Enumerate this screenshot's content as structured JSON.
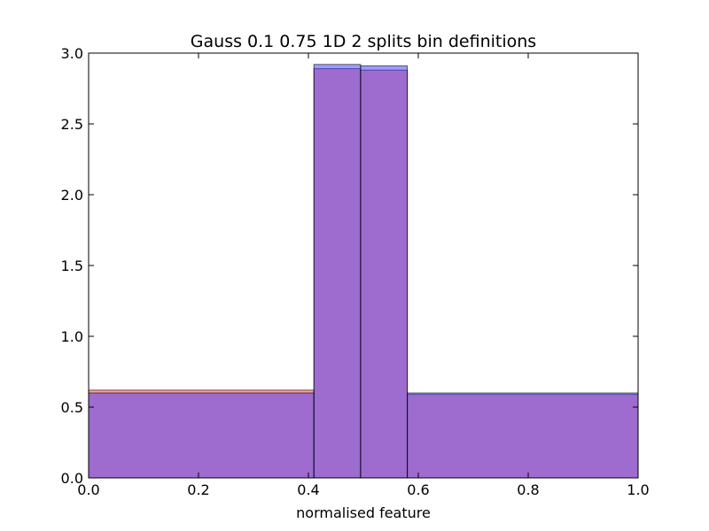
{
  "chart_data": {
    "type": "bar",
    "title": "Gauss 0.1 0.75 1D 2 splits  bin definitions",
    "xlabel": "normalised feature",
    "ylabel": "",
    "xlim": [
      0.0,
      1.0
    ],
    "ylim": [
      0.0,
      3.0
    ],
    "xticks": [
      "0.0",
      "0.2",
      "0.4",
      "0.6",
      "0.8",
      "1.0"
    ],
    "yticks": [
      "0.0",
      "0.5",
      "1.0",
      "1.5",
      "2.0",
      "2.5",
      "3.0"
    ],
    "bin_edges": [
      0.0,
      0.41,
      0.495,
      0.58,
      1.0
    ],
    "series": [
      {
        "color": "#ff3b3b",
        "values": [
          0.62,
          2.89,
          2.88,
          0.59
        ]
      },
      {
        "color": "#3b3bff",
        "values": [
          0.6,
          2.92,
          2.91,
          0.6
        ]
      }
    ],
    "grid": false
  }
}
